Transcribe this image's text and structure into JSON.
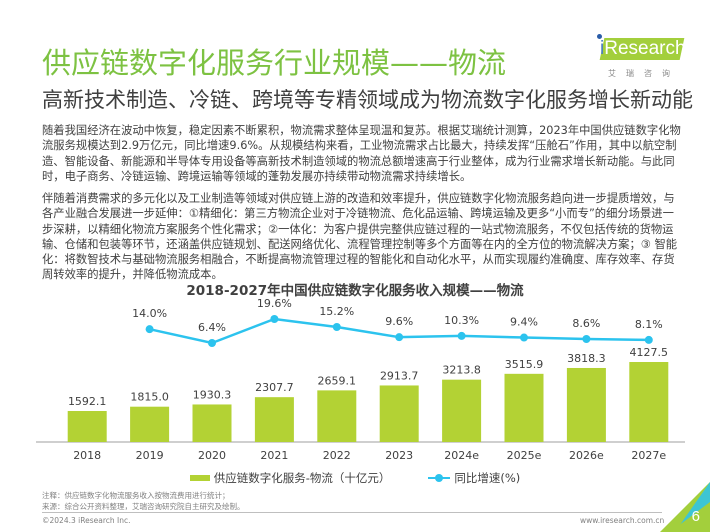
{
  "header": {
    "title": "供应链数字化服务行业规模——物流",
    "subtitle": "高新技术制造、冷链、跨境等专精领域成为物流数字化服务增长新动能",
    "logo_text_i": "i",
    "logo_text_rest": "Research",
    "logo_sub": "艾瑞咨询"
  },
  "body": {
    "paragraph1": "随着我国经济在波动中恢复，稳定因素不断累积，物流需求整体呈现温和复苏。根据艾瑞统计测算，2023年中国供应链数字化物流服务规模达到2.9万亿元，同比增速9.6%。从规模结构来看，工业物流需求占比最大，持续发挥“压舱石”作用，其中以航空制造、智能设备、新能源和半导体专用设备等高新技术制造领域的物流总额增速高于行业整体，成为行业需求增长新动能。与此同时，电子商务、冷链运输、跨境运输等领域的蓬勃发展亦持续带动物流需求持续增长。",
    "paragraph2": "伴随着消费需求的多元化以及工业制造等领域对供应链上游的改造和效率提升，供应链数字化物流服务趋向进一步提质增效，与各产业融合发展进一步延伸：①精细化：第三方物流企业对于冷链物流、危化品运输、跨境运输及更多“小而专”的细分场景进一步深耕，以精细化物流方案服务个性化需求；②一体化：为客户提供完整供应链过程的一站式物流服务，不仅包括传统的货物运输、仓储和包装等环节，还涵盖供应链规划、配送网络优化、流程管理控制等多个方面等在内的全方位的物流解决方案；③ 智能化：将数智技术与基础物流服务相融合，不断提高物流管理过程的智能化和自动化水平，从而实现履约准确度、库存效率、存货周转效率的提升，并降低物流成本。"
  },
  "chart_data": {
    "type": "bar",
    "title": "2018-2027年中国供应链数字化服务收入规模——物流",
    "categories": [
      "2018",
      "2019",
      "2020",
      "2021",
      "2022",
      "2023",
      "2024e",
      "2025e",
      "2026e",
      "2027e"
    ],
    "series": [
      {
        "name": "供应链数字化服务-物流（十亿元）",
        "type": "bar",
        "color": "#b3d234",
        "values": [
          1592.1,
          1815.0,
          1930.3,
          2307.7,
          2659.1,
          2913.7,
          3213.8,
          3515.9,
          3818.3,
          4127.5
        ],
        "labels": [
          "1592.1",
          "1815.0",
          "1930.3",
          "2307.7",
          "2659.1",
          "2913.7",
          "3213.8",
          "3515.9",
          "3818.3",
          "4127.5"
        ]
      },
      {
        "name": "同比增速(%)",
        "type": "line",
        "color": "#2cc3ee",
        "values": [
          null,
          14.0,
          6.4,
          19.6,
          15.2,
          9.6,
          10.3,
          9.4,
          8.6,
          8.1
        ],
        "labels": [
          "",
          "14.0%",
          "6.4%",
          "19.6%",
          "15.2%",
          "9.6%",
          "10.3%",
          "9.4%",
          "8.6%",
          "8.1%"
        ]
      }
    ],
    "xlabel": "",
    "ylabel": "",
    "grid": false,
    "legend": "bottom"
  },
  "legend": {
    "bar_label": "供应链数字化服务-物流（十亿元）",
    "line_label": "同比增速(%)"
  },
  "footer": {
    "note": "注释：供应链数字化物流服务收入按物流费用进行统计；",
    "source": "来源：综合公开资料整理，艾瑞咨询研究院自主研究及绘制。",
    "copyright": "©2024.3 iResearch Inc.",
    "website": "www.iresearch.com.cn",
    "page_number": "6"
  }
}
